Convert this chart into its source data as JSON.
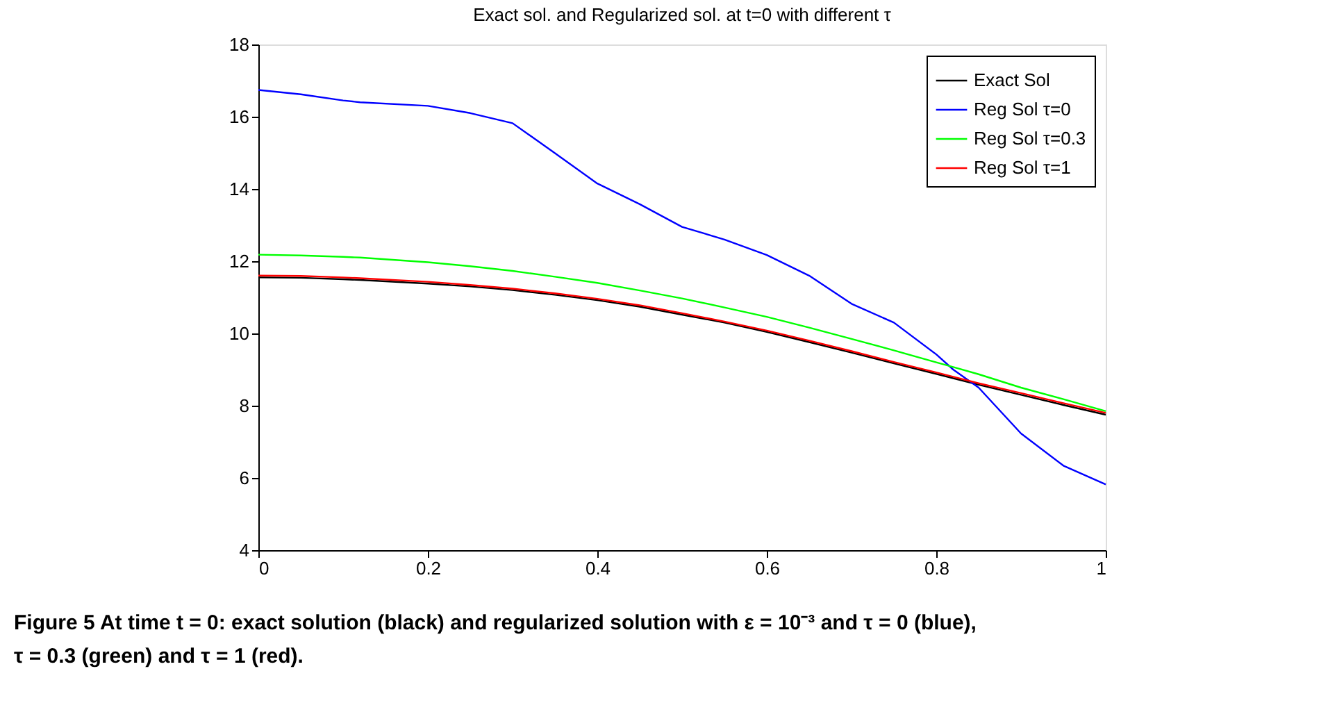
{
  "chart_data": {
    "type": "line",
    "title": "Exact sol. and Regularized sol. at t=0 with different τ",
    "x": [
      0,
      0.05,
      0.1,
      0.12,
      0.2,
      0.25,
      0.3,
      0.35,
      0.4,
      0.45,
      0.5,
      0.55,
      0.6,
      0.65,
      0.7,
      0.75,
      0.8,
      0.82,
      0.85,
      0.9,
      0.95,
      1
    ],
    "series": [
      {
        "name": "Exact Sol",
        "color": "#000000",
        "values": [
          11.55,
          11.54,
          11.5,
          11.48,
          11.38,
          11.3,
          11.2,
          11.07,
          10.92,
          10.74,
          10.52,
          10.3,
          10.04,
          9.76,
          9.47,
          9.17,
          8.88,
          8.76,
          8.58,
          8.3,
          8.02,
          7.75
        ]
      },
      {
        "name": "Reg Sol τ=0",
        "color": "#0000ff",
        "values": [
          16.74,
          16.62,
          16.45,
          16.4,
          16.3,
          16.1,
          15.82,
          14.99,
          14.15,
          13.58,
          12.95,
          12.6,
          12.17,
          11.6,
          10.82,
          10.3,
          9.42,
          9.0,
          8.5,
          7.23,
          6.34,
          5.82
        ]
      },
      {
        "name": "Reg Sol τ=0.3",
        "color": "#00ff00",
        "values": [
          12.18,
          12.16,
          12.12,
          12.1,
          11.97,
          11.86,
          11.73,
          11.57,
          11.4,
          11.19,
          10.97,
          10.72,
          10.46,
          10.16,
          9.85,
          9.53,
          9.2,
          9.07,
          8.87,
          8.5,
          8.18,
          7.85
        ]
      },
      {
        "name": "Reg Sol τ=1",
        "color": "#ff0000",
        "values": [
          11.6,
          11.59,
          11.55,
          11.53,
          11.43,
          11.34,
          11.24,
          11.11,
          10.96,
          10.78,
          10.56,
          10.33,
          10.08,
          9.8,
          9.51,
          9.21,
          8.92,
          8.8,
          8.62,
          8.35,
          8.07,
          7.8
        ]
      }
    ],
    "xlim": [
      0,
      1
    ],
    "xticks": [
      0,
      0.2,
      0.4,
      0.6,
      0.8,
      1
    ],
    "ylim": [
      4,
      18
    ],
    "yticks": [
      4,
      6,
      8,
      10,
      12,
      14,
      16,
      18
    ],
    "grid": false,
    "legend": "top right",
    "marker": "none",
    "line_style": "solid",
    "annotations": [
      "Figure 5 At time t = 0: exact solution (black) and regularized solution with ε = 10⁻³ and τ = 0 (blue), τ = 0.3 (green) and τ = 1 (red)."
    ]
  }
}
